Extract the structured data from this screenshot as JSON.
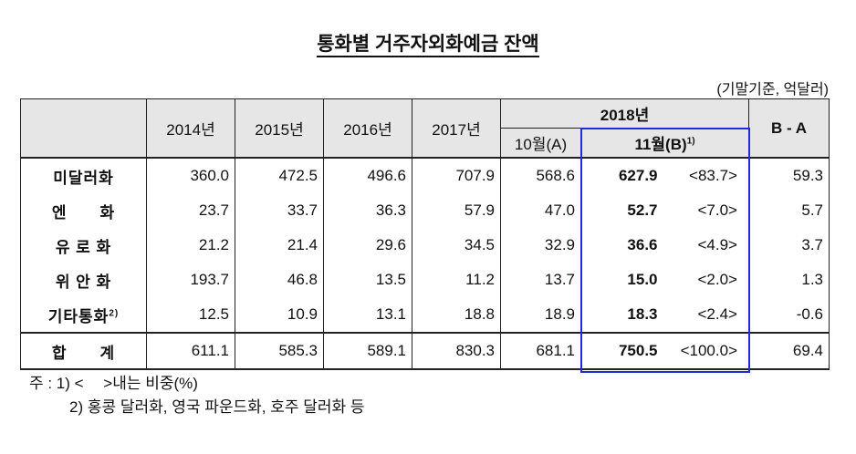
{
  "title": "통화별 거주자외화예금 잔액",
  "unit": "(기말기준, 억달러)",
  "header": {
    "years": [
      "2014년",
      "2015년",
      "2016년",
      "2017년"
    ],
    "year2018": "2018년",
    "oct": "10월(A)",
    "nov": "11월(B)",
    "nov_sup": "1)",
    "diff": "B - A"
  },
  "rows": [
    {
      "label": "미달러화",
      "sup": "",
      "v": [
        "360.0",
        "472.5",
        "496.6",
        "707.9",
        "568.6"
      ],
      "b": "627.9",
      "share": "<83.7>",
      "diff": "59.3"
    },
    {
      "label": "엔　　화",
      "sup": "",
      "v": [
        "23.7",
        "33.7",
        "36.3",
        "57.9",
        "47.0"
      ],
      "b": "52.7",
      "share": "<7.0>",
      "diff": "5.7"
    },
    {
      "label": "유 로 화",
      "sup": "",
      "v": [
        "21.2",
        "21.4",
        "29.6",
        "34.5",
        "32.9"
      ],
      "b": "36.6",
      "share": "<4.9>",
      "diff": "3.7"
    },
    {
      "label": "위 안 화",
      "sup": "",
      "v": [
        "193.7",
        "46.8",
        "13.5",
        "11.2",
        "13.7"
      ],
      "b": "15.0",
      "share": "<2.0>",
      "diff": "1.3"
    },
    {
      "label": "기타통화",
      "sup": "2)",
      "v": [
        "12.5",
        "10.9",
        "13.1",
        "18.8",
        "18.9"
      ],
      "b": "18.3",
      "share": "<2.4>",
      "diff": "-0.6"
    }
  ],
  "total": {
    "label": "합　　계",
    "v": [
      "611.1",
      "585.3",
      "589.1",
      "830.3",
      "681.1"
    ],
    "b": "750.5",
    "share": "<100.0>",
    "diff": "69.4"
  },
  "notes": [
    "주 : 1) <　 >내는 비중(%)",
    "2) 홍콩 달러화, 영국 파운드화, 호주 달러화 등"
  ]
}
